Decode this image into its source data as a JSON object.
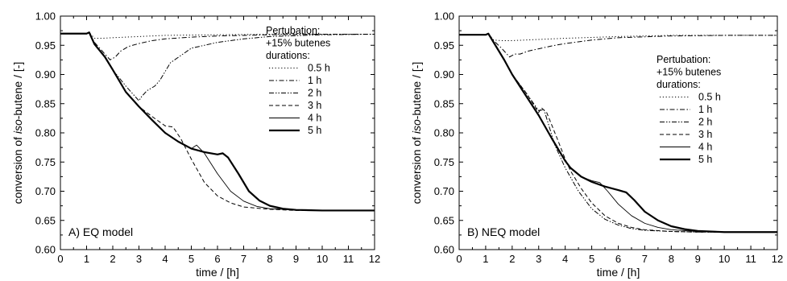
{
  "chart_data": [
    {
      "type": "line",
      "panel_label": "A) EQ model",
      "xlabel": "time / [h]",
      "ylabel_parts": [
        "conversion of ",
        "iso",
        "-butene / [-]"
      ],
      "xlim": [
        0,
        12
      ],
      "ylim": [
        0.6,
        1.0
      ],
      "xticks": [
        "0",
        "1",
        "2",
        "3",
        "4",
        "5",
        "6",
        "7",
        "8",
        "9",
        "10",
        "11",
        "12"
      ],
      "yticks": [
        "0.60",
        "0.65",
        "0.70",
        "0.75",
        "0.80",
        "0.85",
        "0.90",
        "0.95",
        "1.00"
      ],
      "grid": false,
      "legend_placement": "right",
      "legend_header": [
        "Pertubation:",
        "+15% butenes",
        "durations:"
      ],
      "series": [
        {
          "name": "0.5 h",
          "style": "dotted",
          "x": [
            0,
            1.0,
            1.1,
            1.3,
            1.6,
            2,
            3,
            4,
            6,
            8,
            12
          ],
          "y": [
            0.97,
            0.97,
            0.972,
            0.962,
            0.962,
            0.963,
            0.965,
            0.967,
            0.968,
            0.969,
            0.969
          ]
        },
        {
          "name": "1 h",
          "style": "dashdot",
          "x": [
            0,
            1.0,
            1.1,
            1.3,
            1.6,
            1.9,
            2.1,
            2.3,
            2.6,
            3,
            3.5,
            4,
            5,
            6,
            8,
            10,
            12
          ],
          "y": [
            0.97,
            0.97,
            0.972,
            0.955,
            0.94,
            0.925,
            0.93,
            0.94,
            0.948,
            0.953,
            0.958,
            0.961,
            0.964,
            0.966,
            0.968,
            0.969,
            0.969
          ]
        },
        {
          "name": "2 h",
          "style": "dashdotdot",
          "x": [
            0,
            1.0,
            1.1,
            1.3,
            1.7,
            2,
            2.5,
            3,
            3.1,
            3.3,
            3.6,
            3.8,
            4.2,
            5,
            6,
            7,
            8,
            10,
            12
          ],
          "y": [
            0.97,
            0.97,
            0.972,
            0.952,
            0.93,
            0.908,
            0.88,
            0.855,
            0.862,
            0.872,
            0.88,
            0.89,
            0.92,
            0.945,
            0.955,
            0.961,
            0.965,
            0.968,
            0.969
          ]
        },
        {
          "name": "3 h",
          "style": "dashed",
          "x": [
            0,
            1.0,
            1.1,
            1.3,
            1.7,
            2,
            2.5,
            3,
            3.5,
            4,
            4.3,
            4.6,
            5,
            5.5,
            6,
            6.5,
            7,
            8,
            9,
            10,
            12
          ],
          "y": [
            0.97,
            0.97,
            0.972,
            0.952,
            0.93,
            0.908,
            0.87,
            0.845,
            0.828,
            0.812,
            0.81,
            0.79,
            0.755,
            0.715,
            0.692,
            0.68,
            0.673,
            0.669,
            0.667,
            0.667,
            0.667
          ]
        },
        {
          "name": "4 h",
          "style": "thin",
          "x": [
            0,
            1.0,
            1.1,
            1.3,
            1.7,
            2,
            2.5,
            3,
            3.5,
            4,
            4.5,
            5,
            5.2,
            5.5,
            6,
            6.5,
            7,
            7.5,
            8,
            9,
            10,
            12
          ],
          "y": [
            0.97,
            0.97,
            0.972,
            0.952,
            0.93,
            0.908,
            0.87,
            0.845,
            0.822,
            0.8,
            0.785,
            0.773,
            0.779,
            0.765,
            0.73,
            0.7,
            0.683,
            0.674,
            0.67,
            0.668,
            0.667,
            0.667
          ]
        },
        {
          "name": "5 h",
          "style": "thick",
          "x": [
            0,
            1.0,
            1.1,
            1.3,
            1.7,
            2,
            2.5,
            3,
            3.5,
            4,
            4.5,
            5,
            5.5,
            6,
            6.2,
            6.4,
            6.8,
            7.2,
            7.6,
            8,
            8.5,
            9,
            10,
            12
          ],
          "y": [
            0.97,
            0.97,
            0.972,
            0.952,
            0.93,
            0.908,
            0.87,
            0.845,
            0.822,
            0.8,
            0.785,
            0.773,
            0.767,
            0.763,
            0.765,
            0.758,
            0.73,
            0.7,
            0.684,
            0.675,
            0.67,
            0.668,
            0.667,
            0.667
          ]
        }
      ]
    },
    {
      "type": "line",
      "panel_label": "B) NEQ model",
      "xlabel": "time / [h]",
      "ylabel_parts": [
        "conversion of ",
        "iso",
        "-butene / [-]"
      ],
      "xlim": [
        0,
        12
      ],
      "ylim": [
        0.6,
        1.0
      ],
      "xticks": [
        "0",
        "1",
        "2",
        "3",
        "4",
        "5",
        "6",
        "7",
        "8",
        "9",
        "10",
        "11",
        "12"
      ],
      "yticks": [
        "0.60",
        "0.65",
        "0.70",
        "0.75",
        "0.80",
        "0.85",
        "0.90",
        "0.95",
        "1.00"
      ],
      "grid": false,
      "legend_placement": "right",
      "legend_header": [
        "Pertubation:",
        "+15% butenes",
        "durations:"
      ],
      "series": [
        {
          "name": "0.5 h",
          "style": "dotted",
          "x": [
            0,
            1.0,
            1.1,
            1.3,
            1.6,
            2,
            3,
            4,
            6,
            8,
            12
          ],
          "y": [
            0.968,
            0.968,
            0.97,
            0.959,
            0.958,
            0.958,
            0.96,
            0.962,
            0.965,
            0.967,
            0.967
          ]
        },
        {
          "name": "1 h",
          "style": "dashdot",
          "x": [
            0,
            1.0,
            1.1,
            1.3,
            1.6,
            1.9,
            2.1,
            2.3,
            2.6,
            3,
            3.5,
            4,
            5,
            6,
            8,
            10,
            12
          ],
          "y": [
            0.968,
            0.968,
            0.97,
            0.958,
            0.945,
            0.93,
            0.935,
            0.935,
            0.94,
            0.944,
            0.949,
            0.953,
            0.959,
            0.963,
            0.966,
            0.967,
            0.967
          ]
        },
        {
          "name": "2 h",
          "style": "dashdotdot",
          "x": [
            0,
            1.0,
            1.1,
            1.3,
            1.7,
            2,
            2.5,
            3,
            3.2,
            3.6,
            4,
            4.5,
            5,
            5.5,
            6,
            6.5,
            7,
            8,
            9,
            10,
            12
          ],
          "y": [
            0.968,
            0.968,
            0.97,
            0.955,
            0.925,
            0.9,
            0.87,
            0.838,
            0.84,
            0.78,
            0.74,
            0.7,
            0.67,
            0.652,
            0.642,
            0.636,
            0.633,
            0.631,
            0.63,
            0.63,
            0.63
          ]
        },
        {
          "name": "3 h",
          "style": "dashed",
          "x": [
            0,
            1.0,
            1.1,
            1.3,
            1.7,
            2,
            2.5,
            3,
            3.1,
            3.3,
            3.7,
            4,
            4.2,
            4.6,
            5,
            5.5,
            6,
            6.5,
            7,
            8,
            9,
            10,
            12
          ],
          "y": [
            0.968,
            0.968,
            0.97,
            0.955,
            0.925,
            0.9,
            0.87,
            0.835,
            0.843,
            0.835,
            0.79,
            0.755,
            0.735,
            0.705,
            0.68,
            0.658,
            0.645,
            0.638,
            0.634,
            0.631,
            0.63,
            0.63,
            0.63
          ]
        },
        {
          "name": "4 h",
          "style": "thin",
          "x": [
            0,
            1.0,
            1.1,
            1.3,
            1.7,
            2,
            2.5,
            3,
            3.5,
            4,
            4.2,
            4.6,
            5,
            5.3,
            5.6,
            6,
            6.5,
            7,
            7.5,
            8,
            9,
            10,
            12
          ],
          "y": [
            0.968,
            0.968,
            0.97,
            0.955,
            0.925,
            0.9,
            0.865,
            0.83,
            0.79,
            0.752,
            0.74,
            0.725,
            0.718,
            0.715,
            0.7,
            0.678,
            0.658,
            0.645,
            0.638,
            0.634,
            0.631,
            0.63,
            0.63
          ]
        },
        {
          "name": "5 h",
          "style": "thick",
          "x": [
            0,
            1.0,
            1.1,
            1.3,
            1.7,
            2,
            2.5,
            3,
            3.5,
            4,
            4.2,
            4.6,
            5,
            5.5,
            6,
            6.3,
            6.6,
            7,
            7.5,
            8,
            8.5,
            9,
            10,
            12
          ],
          "y": [
            0.968,
            0.968,
            0.97,
            0.955,
            0.925,
            0.9,
            0.865,
            0.83,
            0.79,
            0.752,
            0.74,
            0.725,
            0.716,
            0.708,
            0.702,
            0.698,
            0.685,
            0.665,
            0.65,
            0.64,
            0.635,
            0.632,
            0.63,
            0.63
          ]
        }
      ]
    }
  ]
}
